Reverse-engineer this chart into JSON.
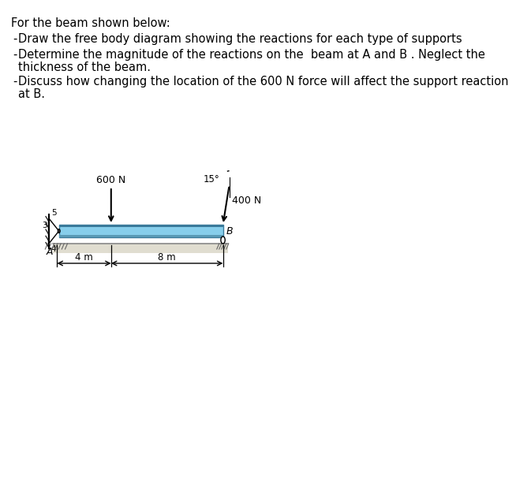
{
  "title_text": "For the beam shown below:",
  "bullet1": "Draw the free body diagram showing the reactions for each type of supports",
  "bullet2a": "Determine the magnitude of the reactions on the  beam at A and B . Neglect the",
  "bullet2b": "    thickness of the beam.",
  "bullet3a": "Discuss how changing the location of the 600 N force will affect the support reaction",
  "bullet3b": "    at B.",
  "force_600_label": "600 N",
  "force_400_label": "400 N",
  "angle_label": "15°",
  "dim_left": "4 m",
  "dim_right": "8 m",
  "label_A": "A",
  "label_B": "B",
  "num3": "3",
  "num4": "4",
  "num5": "5",
  "beam_color": "#87CEEB",
  "beam_edge_color": "#5a9ab5",
  "beam_dark_color": "#3a7a9a",
  "ground_color": "#d0d0d0",
  "text_color": "#000000",
  "bg_color": "#ffffff",
  "fontsize_main": 10.5,
  "fontsize_label": 9.0,
  "fontsize_small": 7.5
}
